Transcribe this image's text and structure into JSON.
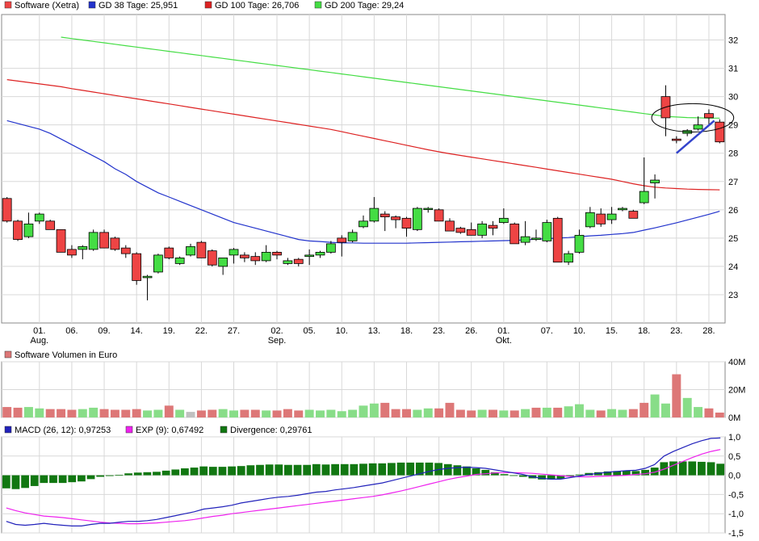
{
  "colors": {
    "up": "#44dd44",
    "down": "#ee4444",
    "neutral": "#c0c0c0",
    "vol_up": "#88dd88",
    "vol_down": "#dd7777",
    "gd38": "#2233cc",
    "gd100": "#dd2222",
    "gd200": "#44dd44",
    "macd": "#2222bb",
    "exp": "#ee22ee",
    "divergence": "#117711",
    "grid": "#d8d8d8"
  },
  "chart_data": [
    {
      "type": "candlestick",
      "legend": [
        {
          "label": "Software (Xetra)",
          "color": "#ee4444"
        },
        {
          "label": "GD 38 Tage: 25,951",
          "color": "#2233cc"
        },
        {
          "label": "GD 100 Tage: 26,706",
          "color": "#dd2222"
        },
        {
          "label": "GD 200 Tage: 29,24",
          "color": "#44dd44"
        }
      ],
      "ylim": [
        22,
        32.9
      ],
      "yticks": [
        "32",
        "31",
        "30",
        "29",
        "28",
        "27",
        "26",
        "25",
        "24",
        "23"
      ],
      "ytick_values": [
        32,
        31,
        30,
        29,
        28,
        27,
        26,
        25,
        24,
        23
      ],
      "xticks": [
        "01.",
        "06.",
        "09.",
        "14.",
        "19.",
        "22.",
        "27.",
        "02.",
        "05.",
        "10.",
        "13.",
        "18.",
        "23.",
        "26.",
        "01.",
        "07.",
        "10.",
        "15.",
        "18.",
        "23.",
        "28."
      ],
      "xtick_index": [
        3,
        6,
        9,
        12,
        15,
        18,
        21,
        25,
        28,
        31,
        34,
        37,
        40,
        43,
        46,
        50,
        53,
        56,
        59,
        62,
        65
      ],
      "months": [
        {
          "label": "Aug.",
          "index": 3
        },
        {
          "label": "Sep.",
          "index": 25
        },
        {
          "label": "Okt.",
          "index": 46
        }
      ],
      "candles": [
        [
          26.4,
          26.45,
          25.55,
          25.6
        ],
        [
          25.6,
          25.65,
          24.9,
          24.95
        ],
        [
          25.05,
          25.9,
          25.0,
          25.5
        ],
        [
          25.6,
          25.9,
          25.5,
          25.85
        ],
        [
          25.6,
          25.65,
          25.3,
          25.3
        ],
        [
          25.3,
          25.3,
          24.5,
          24.5
        ],
        [
          24.6,
          24.75,
          24.3,
          24.4
        ],
        [
          24.6,
          24.75,
          24.25,
          24.7
        ],
        [
          24.6,
          25.3,
          24.55,
          25.2
        ],
        [
          25.2,
          25.3,
          24.65,
          24.65
        ],
        [
          25.0,
          25.05,
          24.55,
          24.6
        ],
        [
          24.65,
          24.75,
          24.3,
          24.45
        ],
        [
          24.45,
          24.5,
          23.35,
          23.5
        ],
        [
          23.6,
          23.7,
          22.8,
          23.65
        ],
        [
          23.8,
          24.45,
          23.75,
          24.4
        ],
        [
          24.65,
          24.7,
          24.25,
          24.3
        ],
        [
          24.1,
          24.35,
          24.05,
          24.3
        ],
        [
          24.4,
          24.8,
          24.35,
          24.7
        ],
        [
          24.85,
          24.9,
          24.3,
          24.3
        ],
        [
          24.55,
          24.6,
          24.0,
          24.05
        ],
        [
          24.0,
          24.3,
          23.7,
          24.3
        ],
        [
          24.4,
          24.65,
          24.1,
          24.6
        ],
        [
          24.4,
          24.5,
          24.15,
          24.3
        ],
        [
          24.35,
          24.5,
          24.05,
          24.2
        ],
        [
          24.2,
          24.75,
          24.15,
          24.5
        ],
        [
          24.5,
          24.55,
          24.25,
          24.4
        ],
        [
          24.1,
          24.3,
          24.05,
          24.2
        ],
        [
          24.25,
          24.3,
          24.0,
          24.1
        ],
        [
          24.35,
          24.6,
          24.05,
          24.4
        ],
        [
          24.4,
          24.55,
          24.3,
          24.5
        ],
        [
          24.5,
          24.9,
          24.45,
          24.8
        ],
        [
          25.0,
          25.1,
          24.35,
          24.85
        ],
        [
          24.9,
          25.3,
          24.85,
          25.2
        ],
        [
          25.4,
          25.8,
          25.35,
          25.6
        ],
        [
          25.6,
          26.45,
          25.55,
          26.05
        ],
        [
          25.85,
          25.95,
          25.25,
          25.75
        ],
        [
          25.75,
          25.8,
          25.35,
          25.65
        ],
        [
          25.7,
          25.75,
          25.05,
          25.35
        ],
        [
          25.3,
          26.1,
          25.25,
          26.05
        ],
        [
          26.05,
          26.1,
          25.9,
          26.05
        ],
        [
          26.0,
          26.05,
          25.6,
          25.6
        ],
        [
          25.6,
          25.7,
          25.25,
          25.25
        ],
        [
          25.35,
          25.4,
          25.15,
          25.2
        ],
        [
          25.3,
          25.55,
          25.1,
          25.1
        ],
        [
          25.1,
          25.6,
          25.0,
          25.5
        ],
        [
          25.45,
          25.6,
          25.1,
          25.35
        ],
        [
          25.55,
          26.05,
          25.5,
          25.7
        ],
        [
          25.5,
          25.55,
          24.8,
          24.8
        ],
        [
          24.85,
          25.6,
          24.75,
          25.05
        ],
        [
          24.95,
          25.3,
          24.9,
          25.0
        ],
        [
          24.9,
          25.65,
          24.85,
          25.55
        ],
        [
          25.7,
          25.75,
          24.15,
          24.15
        ],
        [
          24.15,
          24.55,
          24.05,
          24.45
        ],
        [
          24.5,
          25.3,
          24.45,
          25.1
        ],
        [
          25.4,
          26.1,
          25.35,
          25.9
        ],
        [
          25.85,
          26.05,
          25.4,
          25.5
        ],
        [
          25.65,
          26.1,
          25.5,
          25.85
        ],
        [
          26.0,
          26.1,
          25.95,
          26.05
        ],
        [
          25.95,
          26.0,
          25.7,
          25.7
        ],
        [
          26.25,
          27.85,
          26.2,
          26.65
        ],
        [
          26.95,
          27.25,
          26.4,
          27.05
        ],
        [
          30.0,
          30.4,
          28.6,
          29.25
        ],
        [
          28.5,
          28.6,
          28.35,
          28.45
        ],
        [
          28.7,
          28.85,
          28.6,
          28.8
        ],
        [
          28.85,
          29.3,
          28.8,
          29.0
        ],
        [
          29.4,
          29.55,
          29.0,
          29.25
        ],
        [
          29.1,
          29.2,
          28.35,
          28.4
        ]
      ],
      "gd38": [
        29.15,
        29.05,
        28.95,
        28.85,
        28.7,
        28.5,
        28.3,
        28.1,
        27.9,
        27.7,
        27.45,
        27.25,
        27.0,
        26.8,
        26.6,
        26.45,
        26.3,
        26.15,
        26.0,
        25.85,
        25.7,
        25.55,
        25.45,
        25.35,
        25.25,
        25.15,
        25.05,
        24.95,
        24.9,
        24.88,
        24.85,
        24.83,
        24.83,
        24.82,
        24.82,
        24.82,
        24.82,
        24.82,
        24.83,
        24.84,
        24.85,
        24.86,
        24.87,
        24.88,
        24.89,
        24.9,
        24.91,
        24.92,
        24.94,
        24.96,
        24.98,
        25.0,
        25.02,
        25.05,
        25.08,
        25.1,
        25.13,
        25.16,
        25.2,
        25.28,
        25.36,
        25.45,
        25.54,
        25.64,
        25.74,
        25.84,
        25.95
      ],
      "gd100": [
        30.6,
        30.55,
        30.5,
        30.45,
        30.4,
        30.35,
        30.28,
        30.22,
        30.16,
        30.1,
        30.04,
        29.98,
        29.92,
        29.86,
        29.8,
        29.74,
        29.68,
        29.62,
        29.56,
        29.5,
        29.44,
        29.38,
        29.32,
        29.26,
        29.2,
        29.14,
        29.08,
        29.02,
        28.96,
        28.9,
        28.84,
        28.76,
        28.68,
        28.6,
        28.52,
        28.44,
        28.36,
        28.28,
        28.2,
        28.12,
        28.05,
        27.98,
        27.92,
        27.86,
        27.8,
        27.74,
        27.68,
        27.62,
        27.56,
        27.5,
        27.44,
        27.38,
        27.32,
        27.26,
        27.2,
        27.14,
        27.08,
        27.0,
        26.92,
        26.85,
        26.8,
        26.77,
        26.75,
        26.73,
        26.72,
        26.71,
        26.706
      ],
      "gd200_start": 5,
      "gd200": [
        32.1,
        32.05,
        32.0,
        31.95,
        31.9,
        31.85,
        31.8,
        31.75,
        31.7,
        31.65,
        31.6,
        31.55,
        31.5,
        31.45,
        31.4,
        31.35,
        31.3,
        31.25,
        31.2,
        31.15,
        31.1,
        31.05,
        31.0,
        30.95,
        30.9,
        30.85,
        30.8,
        30.75,
        30.7,
        30.65,
        30.6,
        30.55,
        30.5,
        30.45,
        30.4,
        30.35,
        30.3,
        30.25,
        30.2,
        30.15,
        30.1,
        30.05,
        30.0,
        29.95,
        29.9,
        29.85,
        29.8,
        29.75,
        29.7,
        29.65,
        29.6,
        29.55,
        29.5,
        29.45,
        29.4,
        29.35,
        29.3,
        29.28,
        29.26,
        29.25,
        29.24,
        29.24
      ],
      "annotations": {
        "ellipse": {
          "cx_index": 63.5,
          "cy": 29.25,
          "rx_idx": 3.8,
          "ry": 0.5
        },
        "trend": [
          [
            62.0,
            28.0
          ],
          [
            65.5,
            29.15
          ]
        ]
      }
    },
    {
      "type": "bar",
      "legend": [
        {
          "label": "Software Volumen in Euro",
          "color": "#dd7777"
        }
      ],
      "yticks": [
        "40M",
        "20M",
        "0M"
      ],
      "ytick_values": [
        40,
        20,
        0
      ],
      "ylim": [
        0,
        40
      ],
      "values": [
        7.5,
        7,
        7.5,
        6.5,
        6,
        6,
        5.5,
        6,
        7,
        6,
        5.5,
        5.5,
        6,
        5,
        5.5,
        8.5,
        5.5,
        4,
        5,
        5.5,
        6,
        5,
        5.5,
        5.5,
        5,
        5,
        6,
        5,
        5.5,
        5,
        5.5,
        4.5,
        5.5,
        8.5,
        10,
        10.5,
        6,
        6,
        5.5,
        6.5,
        6.5,
        10.5,
        5.5,
        5,
        5.5,
        5.5,
        5,
        5,
        6,
        7,
        7,
        7,
        8,
        9.5,
        5.5,
        5,
        6,
        5.5,
        6,
        10.5,
        16.5,
        10,
        31,
        14,
        7.5,
        6.5,
        3.5
      ],
      "directions": [
        "d",
        "d",
        "u",
        "u",
        "d",
        "d",
        "d",
        "u",
        "u",
        "d",
        "d",
        "d",
        "d",
        "u",
        "u",
        "d",
        "u",
        "n",
        "d",
        "d",
        "u",
        "u",
        "d",
        "d",
        "u",
        "d",
        "d",
        "d",
        "u",
        "u",
        "u",
        "u",
        "u",
        "u",
        "u",
        "d",
        "d",
        "d",
        "u",
        "u",
        "d",
        "d",
        "d",
        "d",
        "u",
        "d",
        "u",
        "d",
        "u",
        "d",
        "u",
        "d",
        "u",
        "u",
        "u",
        "d",
        "u",
        "u",
        "d",
        "d",
        "u",
        "u",
        "d",
        "u",
        "u",
        "d",
        "d"
      ]
    },
    {
      "type": "line+bar",
      "legend": [
        {
          "label": "MACD (26, 12): 0,97253",
          "color": "#2222bb"
        },
        {
          "label": "EXP (9): 0,67492",
          "color": "#ee22ee"
        },
        {
          "label": "Divergence: 0,29761",
          "color": "#117711"
        }
      ],
      "yticks": [
        "1,0",
        "0,5",
        "0,0",
        "-0,5",
        "-1,0",
        "-1,5"
      ],
      "ytick_values": [
        1.0,
        0.5,
        0.0,
        -0.5,
        -1.0,
        -1.5
      ],
      "ylim": [
        -1.5,
        1.0
      ],
      "macd": [
        -1.2,
        -1.28,
        -1.3,
        -1.28,
        -1.25,
        -1.28,
        -1.3,
        -1.32,
        -1.32,
        -1.28,
        -1.25,
        -1.25,
        -1.22,
        -1.2,
        -1.2,
        -1.18,
        -1.15,
        -1.1,
        -1.05,
        -1.0,
        -0.95,
        -0.88,
        -0.85,
        -0.82,
        -0.78,
        -0.72,
        -0.68,
        -0.64,
        -0.6,
        -0.57,
        -0.55,
        -0.52,
        -0.48,
        -0.44,
        -0.42,
        -0.38,
        -0.35,
        -0.32,
        -0.28,
        -0.24,
        -0.2,
        -0.14,
        -0.08,
        -0.02,
        0.04,
        0.1,
        0.15,
        0.18,
        0.2,
        0.21,
        0.2,
        0.18,
        0.14,
        0.1,
        0.06,
        0.02,
        -0.04,
        -0.08,
        -0.1,
        -0.1,
        -0.06,
        -0.02,
        0.02,
        0.05,
        0.08,
        0.1,
        0.12,
        0.13,
        0.18,
        0.28,
        0.5,
        0.62,
        0.72,
        0.82,
        0.9,
        0.96,
        0.97
      ],
      "exp": [
        -0.85,
        -0.92,
        -0.98,
        -1.02,
        -1.06,
        -1.08,
        -1.1,
        -1.13,
        -1.16,
        -1.19,
        -1.22,
        -1.24,
        -1.25,
        -1.26,
        -1.26,
        -1.25,
        -1.24,
        -1.22,
        -1.2,
        -1.18,
        -1.15,
        -1.11,
        -1.07,
        -1.04,
        -1.0,
        -0.97,
        -0.94,
        -0.91,
        -0.88,
        -0.85,
        -0.82,
        -0.79,
        -0.76,
        -0.73,
        -0.7,
        -0.67,
        -0.64,
        -0.61,
        -0.58,
        -0.55,
        -0.51,
        -0.46,
        -0.41,
        -0.35,
        -0.29,
        -0.23,
        -0.17,
        -0.11,
        -0.06,
        -0.02,
        0.02,
        0.04,
        0.06,
        0.07,
        0.07,
        0.06,
        0.05,
        0.03,
        0.01,
        -0.01,
        -0.03,
        -0.04,
        -0.04,
        -0.03,
        -0.02,
        -0.01,
        0.0,
        0.02,
        0.04,
        0.08,
        0.16,
        0.26,
        0.36,
        0.46,
        0.55,
        0.62,
        0.67
      ],
      "divergence": [
        -0.34,
        -0.36,
        -0.33,
        -0.28,
        -0.2,
        -0.2,
        -0.2,
        -0.18,
        -0.16,
        -0.1,
        -0.04,
        -0.02,
        0.01,
        0.05,
        0.07,
        0.08,
        0.09,
        0.12,
        0.15,
        0.18,
        0.2,
        0.23,
        0.22,
        0.22,
        0.23,
        0.24,
        0.26,
        0.27,
        0.28,
        0.28,
        0.27,
        0.27,
        0.27,
        0.29,
        0.28,
        0.29,
        0.29,
        0.29,
        0.3,
        0.31,
        0.31,
        0.32,
        0.33,
        0.33,
        0.33,
        0.33,
        0.32,
        0.29,
        0.26,
        0.23,
        0.18,
        0.14,
        0.08,
        0.03,
        -0.01,
        -0.04,
        -0.08,
        -0.11,
        -0.11,
        -0.09,
        -0.03,
        0.02,
        0.06,
        0.08,
        0.1,
        0.11,
        0.12,
        0.11,
        0.14,
        0.2,
        0.34,
        0.36,
        0.36,
        0.36,
        0.35,
        0.34,
        0.3
      ]
    }
  ]
}
